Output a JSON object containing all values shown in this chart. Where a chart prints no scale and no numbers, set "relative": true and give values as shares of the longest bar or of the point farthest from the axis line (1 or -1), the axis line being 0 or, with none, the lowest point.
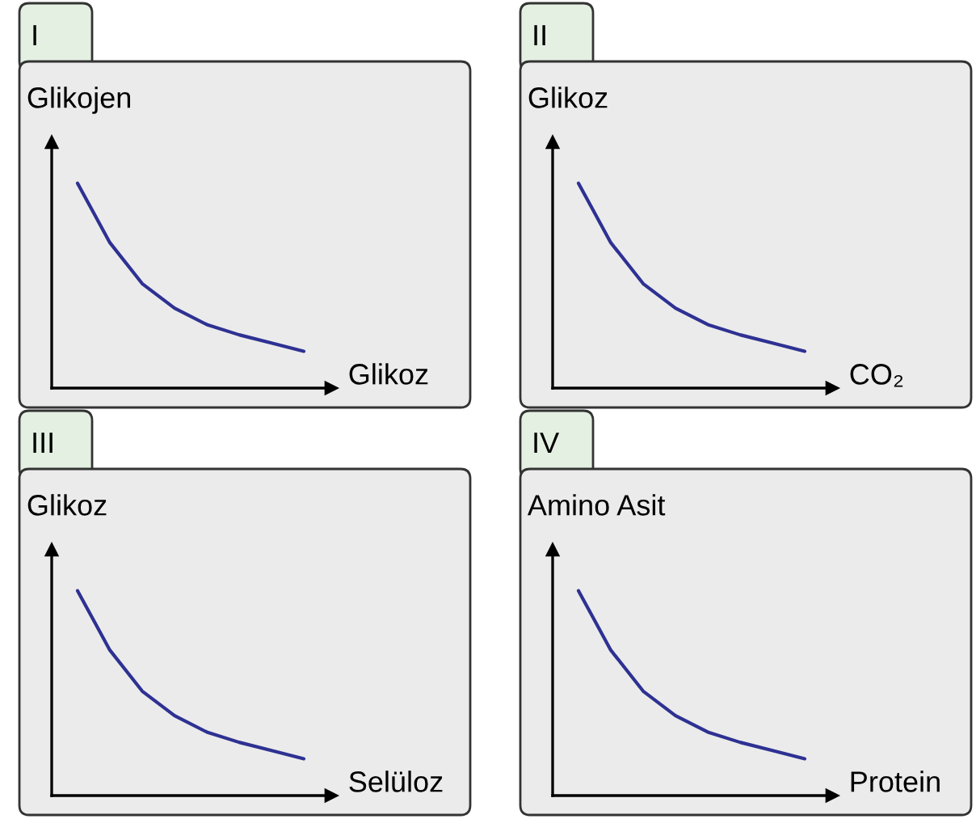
{
  "chart_data": [
    {
      "type": "line",
      "title": "I",
      "ylabel": "Glikojen",
      "xlabel": "Glikoz",
      "relative": true,
      "categories": [
        null,
        null,
        null,
        null,
        null,
        null,
        null,
        null
      ],
      "series": [
        {
          "color": "#2e3192",
          "values": [
            1,
            0.71,
            0.51,
            0.39,
            0.31,
            0.26,
            0.22,
            0.18
          ]
        }
      ]
    },
    {
      "type": "line",
      "title": "II",
      "ylabel": "Glikoz",
      "xlabel": "CO₂",
      "relative": true,
      "categories": [
        null,
        null,
        null,
        null,
        null,
        null,
        null,
        null
      ],
      "series": [
        {
          "color": "#2e3192",
          "values": [
            1,
            0.71,
            0.51,
            0.39,
            0.31,
            0.26,
            0.22,
            0.18
          ]
        }
      ]
    },
    {
      "type": "line",
      "title": "III",
      "ylabel": "Glikoz",
      "xlabel": "Selüloz",
      "relative": true,
      "categories": [
        null,
        null,
        null,
        null,
        null,
        null,
        null,
        null
      ],
      "series": [
        {
          "color": "#2e3192",
          "values": [
            1,
            0.71,
            0.51,
            0.39,
            0.31,
            0.26,
            0.22,
            0.18
          ]
        }
      ]
    },
    {
      "type": "line",
      "title": "IV",
      "ylabel": "Amino Asit",
      "xlabel": "Protein",
      "relative": true,
      "categories": [
        null,
        null,
        null,
        null,
        null,
        null,
        null,
        null
      ],
      "series": [
        {
          "color": "#2e3192",
          "values": [
            1,
            0.71,
            0.51,
            0.39,
            0.31,
            0.26,
            0.22,
            0.18
          ]
        }
      ]
    }
  ]
}
